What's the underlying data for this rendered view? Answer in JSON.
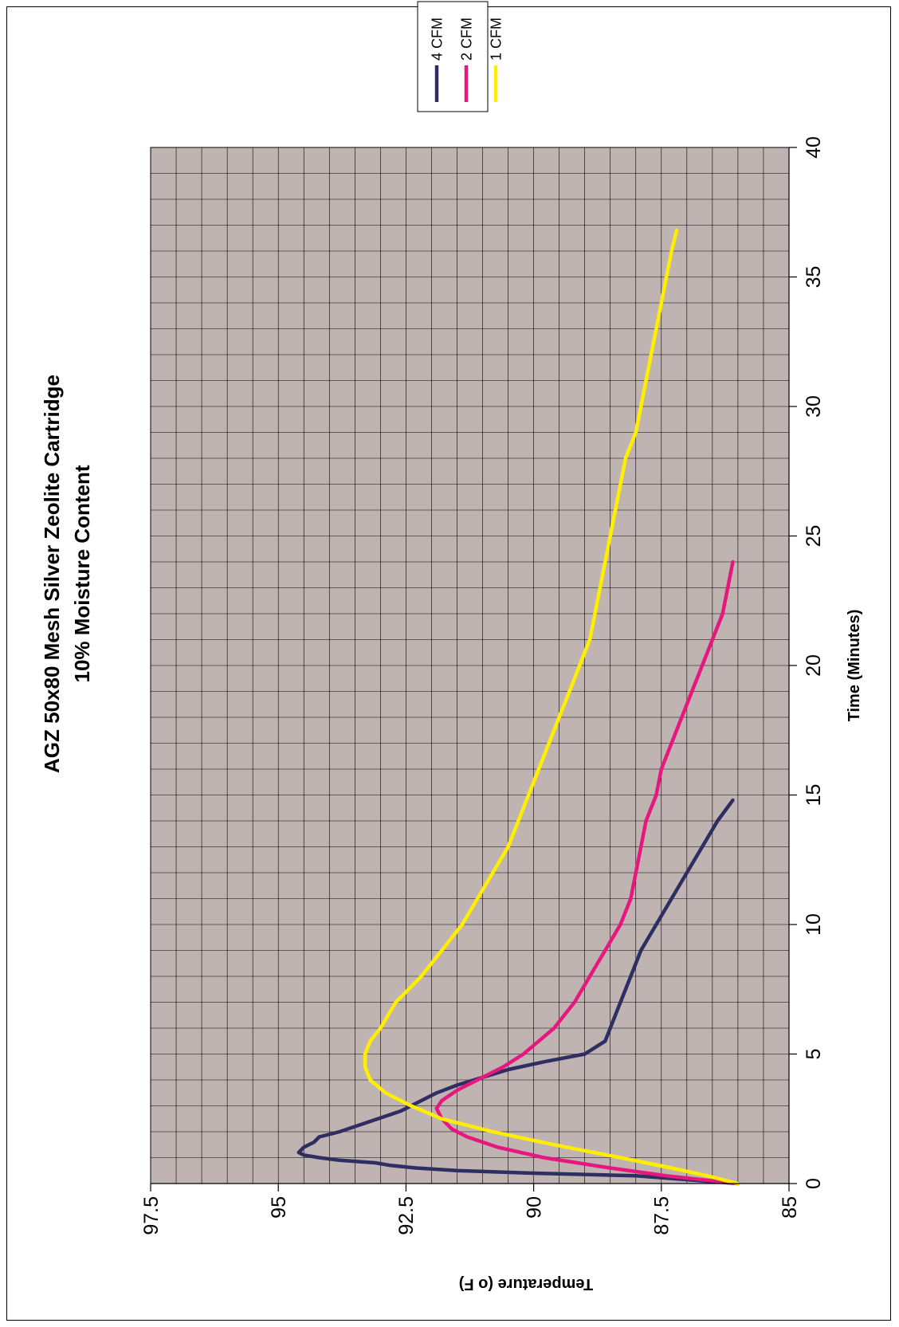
{
  "chart_data": {
    "type": "line",
    "title": "AGZ 50x80 Mesh Silver Zeolite Cartridge",
    "subtitle": "10% Moisture Content",
    "xlabel": "Time (Minutes)",
    "ylabel": "Temperature (o F)",
    "xlim": [
      0,
      40
    ],
    "ylim": [
      85,
      97.5
    ],
    "x_ticks": [
      "0",
      "5",
      "10",
      "15",
      "20",
      "25",
      "30",
      "35",
      "40"
    ],
    "y_ticks": [
      "85",
      "87.5",
      "90",
      "92.5",
      "95",
      "97.5"
    ],
    "grid": true,
    "legend_placement": "top-right",
    "plot_background": "#c0b4b3",
    "orientation_note": "rotated",
    "series": [
      {
        "name": "4 CFM",
        "color": "#2e2e62",
        "points": [
          [
            0,
            86
          ],
          [
            0.3,
            88
          ],
          [
            0.4,
            90
          ],
          [
            0.5,
            91.5
          ],
          [
            0.6,
            92.3
          ],
          [
            0.7,
            92.8
          ],
          [
            0.8,
            93.1
          ],
          [
            0.9,
            93.8
          ],
          [
            1.0,
            94.2
          ],
          [
            1.1,
            94.5
          ],
          [
            1.2,
            94.6
          ],
          [
            1.4,
            94.5
          ],
          [
            1.6,
            94.3
          ],
          [
            1.8,
            94.2
          ],
          [
            2.0,
            93.8
          ],
          [
            2.2,
            93.5
          ],
          [
            2.4,
            93.2
          ],
          [
            2.6,
            92.9
          ],
          [
            2.8,
            92.6
          ],
          [
            3.0,
            92.4
          ],
          [
            3.2,
            92.2
          ],
          [
            3.5,
            91.9
          ],
          [
            3.8,
            91.5
          ],
          [
            4.1,
            91.0
          ],
          [
            4.4,
            90.5
          ],
          [
            4.7,
            89.8
          ],
          [
            5.0,
            89.0
          ],
          [
            5.5,
            88.6
          ],
          [
            6.0,
            88.5
          ],
          [
            7.0,
            88.3
          ],
          [
            8.0,
            88.1
          ],
          [
            9.0,
            87.9
          ],
          [
            10.0,
            87.6
          ],
          [
            11.0,
            87.3
          ],
          [
            12.0,
            87.0
          ],
          [
            13.0,
            86.7
          ],
          [
            14.0,
            86.4
          ],
          [
            14.8,
            86.1
          ]
        ]
      },
      {
        "name": "2 CFM",
        "color": "#e6177e",
        "points": [
          [
            0,
            86
          ],
          [
            0.3,
            87.4
          ],
          [
            0.6,
            88.5
          ],
          [
            1.0,
            89.8
          ],
          [
            1.4,
            90.7
          ],
          [
            1.8,
            91.3
          ],
          [
            2.1,
            91.6
          ],
          [
            2.5,
            91.8
          ],
          [
            2.9,
            91.9
          ],
          [
            3.2,
            91.8
          ],
          [
            3.6,
            91.5
          ],
          [
            4.0,
            91.1
          ],
          [
            4.5,
            90.6
          ],
          [
            5.0,
            90.2
          ],
          [
            5.5,
            89.9
          ],
          [
            6.0,
            89.6
          ],
          [
            7.0,
            89.2
          ],
          [
            8.0,
            88.9
          ],
          [
            9.0,
            88.6
          ],
          [
            10.0,
            88.3
          ],
          [
            11.0,
            88.1
          ],
          [
            12.0,
            88.0
          ],
          [
            13.0,
            87.9
          ],
          [
            14.0,
            87.8
          ],
          [
            15.0,
            87.6
          ],
          [
            16.0,
            87.5
          ],
          [
            17.0,
            87.3
          ],
          [
            18.0,
            87.1
          ],
          [
            19.0,
            86.9
          ],
          [
            20.0,
            86.7
          ],
          [
            21.0,
            86.5
          ],
          [
            22.0,
            86.3
          ],
          [
            23.0,
            86.2
          ],
          [
            24.0,
            86.1
          ]
        ]
      },
      {
        "name": "1 CFM",
        "color": "#ffee00",
        "points": [
          [
            0,
            86
          ],
          [
            0.3,
            86.6
          ],
          [
            0.6,
            87.3
          ],
          [
            1.0,
            88.3
          ],
          [
            1.5,
            89.6
          ],
          [
            2.0,
            90.8
          ],
          [
            2.5,
            91.8
          ],
          [
            3.0,
            92.4
          ],
          [
            3.5,
            92.9
          ],
          [
            4.0,
            93.2
          ],
          [
            4.5,
            93.3
          ],
          [
            5.0,
            93.3
          ],
          [
            5.5,
            93.2
          ],
          [
            6.0,
            93.0
          ],
          [
            7.0,
            92.7
          ],
          [
            8.0,
            92.2
          ],
          [
            9.0,
            91.8
          ],
          [
            10.0,
            91.4
          ],
          [
            11.0,
            91.1
          ],
          [
            12.0,
            90.8
          ],
          [
            13.0,
            90.5
          ],
          [
            14.0,
            90.3
          ],
          [
            15.0,
            90.1
          ],
          [
            16.0,
            89.9
          ],
          [
            17.0,
            89.7
          ],
          [
            18.0,
            89.5
          ],
          [
            19.0,
            89.3
          ],
          [
            20.0,
            89.1
          ],
          [
            21.0,
            88.9
          ],
          [
            22.0,
            88.8
          ],
          [
            23.0,
            88.7
          ],
          [
            24.0,
            88.6
          ],
          [
            25.0,
            88.5
          ],
          [
            26.0,
            88.4
          ],
          [
            27.0,
            88.3
          ],
          [
            28.0,
            88.2
          ],
          [
            29.0,
            88.0
          ],
          [
            30.0,
            87.9
          ],
          [
            31.0,
            87.8
          ],
          [
            32.0,
            87.7
          ],
          [
            33.0,
            87.6
          ],
          [
            34.0,
            87.5
          ],
          [
            35.0,
            87.4
          ],
          [
            36.0,
            87.3
          ],
          [
            36.8,
            87.2
          ]
        ]
      }
    ]
  }
}
